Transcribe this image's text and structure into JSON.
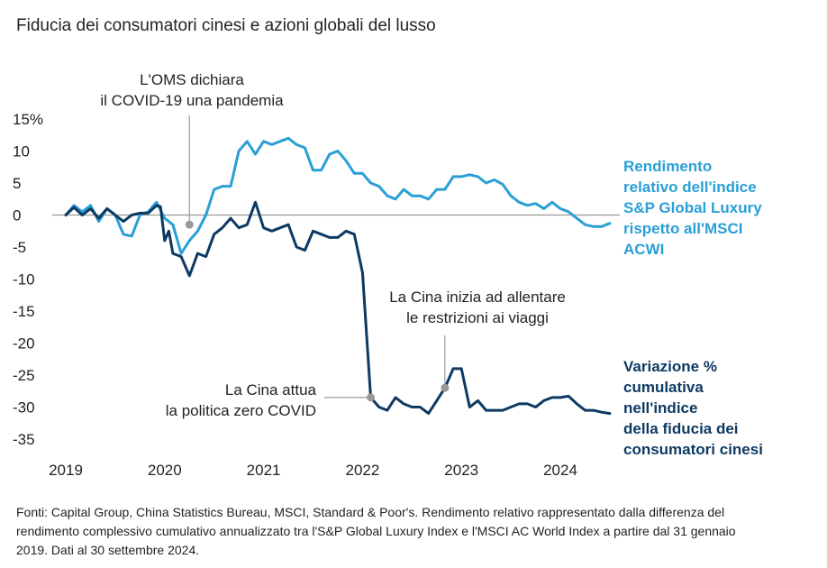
{
  "title": "Fiducia dei consumatori cinesi e azioni globali del lusso",
  "footnote": "Fonti: Capital Group, China Statistics Bureau, MSCI, Standard & Poor's. Rendimento relativo rappresentato dalla differenza del rendimento complessivo cumulativo annualizzato tra l'S&P Global Luxury Index e l'MSCI AC World Index a partire dal 31 gennaio 2019. Dati al 30 settembre 2024.",
  "colors": {
    "luxury": "#2a9fd6",
    "confidence": "#0d3a63",
    "zero_line": "#9a9a9a",
    "marker": "#999999"
  },
  "chart_data": {
    "type": "line",
    "title": "Fiducia dei consumatori cinesi e azioni globali del lusso",
    "xlabel": "",
    "ylabel": "",
    "ylim": [
      -35,
      15
    ],
    "yticks": [
      {
        "value": 15,
        "label": "15%"
      },
      {
        "value": 10,
        "label": "10"
      },
      {
        "value": 5,
        "label": "5"
      },
      {
        "value": 0,
        "label": "0"
      },
      {
        "value": -5,
        "label": "-5"
      },
      {
        "value": -10,
        "label": "-10"
      },
      {
        "value": -15,
        "label": "-15"
      },
      {
        "value": -20,
        "label": "-20"
      },
      {
        "value": -25,
        "label": "-25"
      },
      {
        "value": -30,
        "label": "-30"
      },
      {
        "value": -35,
        "label": "-35"
      }
    ],
    "xticks": [
      {
        "value": 2019.0,
        "label": "2019"
      },
      {
        "value": 2020.0,
        "label": "2020"
      },
      {
        "value": 2021.0,
        "label": "2021"
      },
      {
        "value": 2022.0,
        "label": "2022"
      },
      {
        "value": 2023.0,
        "label": "2023"
      },
      {
        "value": 2024.0,
        "label": "2024"
      }
    ],
    "grid": false,
    "zero_line": true,
    "series": [
      {
        "name": "Rendimento relativo dell'indice S&P Global Luxury rispetto all'MSCI ACWI",
        "color": "#2a9fd6",
        "points": [
          [
            2019.0,
            0
          ],
          [
            2019.083,
            1.5
          ],
          [
            2019.167,
            0.5
          ],
          [
            2019.25,
            1.5
          ],
          [
            2019.333,
            -1
          ],
          [
            2019.417,
            1
          ],
          [
            2019.5,
            0
          ],
          [
            2019.583,
            -3
          ],
          [
            2019.667,
            -3.3
          ],
          [
            2019.75,
            0
          ],
          [
            2019.833,
            0.5
          ],
          [
            2019.917,
            2
          ],
          [
            2020.0,
            -0.5
          ],
          [
            2020.083,
            -1.5
          ],
          [
            2020.167,
            -6
          ],
          [
            2020.25,
            -4
          ],
          [
            2020.333,
            -2.5
          ],
          [
            2020.417,
            0
          ],
          [
            2020.5,
            4
          ],
          [
            2020.583,
            4.5
          ],
          [
            2020.667,
            4.5
          ],
          [
            2020.75,
            10
          ],
          [
            2020.833,
            11.5
          ],
          [
            2020.917,
            9.5
          ],
          [
            2021.0,
            11.5
          ],
          [
            2021.083,
            11
          ],
          [
            2021.167,
            11.5
          ],
          [
            2021.25,
            12
          ],
          [
            2021.333,
            11
          ],
          [
            2021.417,
            10.5
          ],
          [
            2021.5,
            7
          ],
          [
            2021.583,
            7
          ],
          [
            2021.667,
            9.5
          ],
          [
            2021.75,
            10
          ],
          [
            2021.833,
            8.5
          ],
          [
            2021.917,
            6.5
          ],
          [
            2022.0,
            6.5
          ],
          [
            2022.083,
            5
          ],
          [
            2022.167,
            4.5
          ],
          [
            2022.25,
            3
          ],
          [
            2022.333,
            2.5
          ],
          [
            2022.417,
            4
          ],
          [
            2022.5,
            3
          ],
          [
            2022.583,
            3
          ],
          [
            2022.667,
            2.5
          ],
          [
            2022.75,
            4
          ],
          [
            2022.833,
            4
          ],
          [
            2022.917,
            6
          ],
          [
            2023.0,
            6
          ],
          [
            2023.083,
            6.3
          ],
          [
            2023.167,
            6
          ],
          [
            2023.25,
            5
          ],
          [
            2023.333,
            5.5
          ],
          [
            2023.417,
            4.8
          ],
          [
            2023.5,
            3
          ],
          [
            2023.583,
            2
          ],
          [
            2023.667,
            1.5
          ],
          [
            2023.75,
            1.8
          ],
          [
            2023.833,
            1
          ],
          [
            2023.917,
            2
          ],
          [
            2024.0,
            1
          ],
          [
            2024.083,
            0.5
          ],
          [
            2024.167,
            -0.5
          ],
          [
            2024.25,
            -1.5
          ],
          [
            2024.333,
            -1.8
          ],
          [
            2024.417,
            -1.8
          ],
          [
            2024.5,
            -1.3
          ]
        ]
      },
      {
        "name": "Variazione % cumulativa nell'indice della fiducia dei consumatori cinesi",
        "color": "#0d3a63",
        "points": [
          [
            2019.0,
            0
          ],
          [
            2019.083,
            1.2
          ],
          [
            2019.167,
            0
          ],
          [
            2019.25,
            1
          ],
          [
            2019.333,
            -0.5
          ],
          [
            2019.417,
            1
          ],
          [
            2019.5,
            0
          ],
          [
            2019.583,
            -1
          ],
          [
            2019.667,
            0
          ],
          [
            2019.75,
            0.3
          ],
          [
            2019.833,
            0.3
          ],
          [
            2019.917,
            1.5
          ],
          [
            2019.958,
            1.3
          ],
          [
            2020.0,
            -4
          ],
          [
            2020.042,
            -2.5
          ],
          [
            2020.083,
            -6
          ],
          [
            2020.167,
            -6.5
          ],
          [
            2020.25,
            -9.5
          ],
          [
            2020.333,
            -6
          ],
          [
            2020.417,
            -6.5
          ],
          [
            2020.5,
            -3
          ],
          [
            2020.583,
            -2
          ],
          [
            2020.667,
            -0.5
          ],
          [
            2020.75,
            -2
          ],
          [
            2020.833,
            -1.5
          ],
          [
            2020.917,
            2
          ],
          [
            2021.0,
            -2
          ],
          [
            2021.083,
            -2.5
          ],
          [
            2021.167,
            -2
          ],
          [
            2021.25,
            -1.5
          ],
          [
            2021.333,
            -5
          ],
          [
            2021.417,
            -5.5
          ],
          [
            2021.5,
            -2.5
          ],
          [
            2021.583,
            -3
          ],
          [
            2021.667,
            -3.5
          ],
          [
            2021.75,
            -3.5
          ],
          [
            2021.833,
            -2.5
          ],
          [
            2021.917,
            -3
          ],
          [
            2022.0,
            -9
          ],
          [
            2022.083,
            -28.5
          ],
          [
            2022.167,
            -30
          ],
          [
            2022.25,
            -30.5
          ],
          [
            2022.333,
            -28.5
          ],
          [
            2022.417,
            -29.5
          ],
          [
            2022.5,
            -30
          ],
          [
            2022.583,
            -30
          ],
          [
            2022.667,
            -31
          ],
          [
            2022.75,
            -29
          ],
          [
            2022.833,
            -27
          ],
          [
            2022.917,
            -24
          ],
          [
            2023.0,
            -24
          ],
          [
            2023.083,
            -30
          ],
          [
            2023.167,
            -29
          ],
          [
            2023.25,
            -30.5
          ],
          [
            2023.333,
            -30.5
          ],
          [
            2023.417,
            -30.5
          ],
          [
            2023.5,
            -30
          ],
          [
            2023.583,
            -29.5
          ],
          [
            2023.667,
            -29.5
          ],
          [
            2023.75,
            -30
          ],
          [
            2023.833,
            -29
          ],
          [
            2023.917,
            -28.5
          ],
          [
            2024.0,
            -28.5
          ],
          [
            2024.083,
            -28.3
          ],
          [
            2024.167,
            -29.5
          ],
          [
            2024.25,
            -30.5
          ],
          [
            2024.333,
            -30.5
          ],
          [
            2024.417,
            -30.8
          ],
          [
            2024.5,
            -31
          ]
        ]
      }
    ],
    "annotations": [
      {
        "text_lines": [
          "L'OMS dichiara",
          "il COVID-19 una pandemia"
        ],
        "x": 2020.25,
        "y": -1.5
      },
      {
        "text_lines": [
          "La Cina attua",
          "la politica zero COVID"
        ],
        "x": 2022.083,
        "y": -28.5
      },
      {
        "text_lines": [
          "La Cina inizia ad allentare",
          "le restrizioni ai viaggi"
        ],
        "x": 2022.833,
        "y": -27
      }
    ],
    "series_labels": [
      [
        "Rendimento",
        "relativo dell'indice",
        "S&P Global Luxury",
        "rispetto all'MSCI",
        "ACWI"
      ],
      [
        "Variazione %",
        "cumulativa",
        "nell'indice",
        "della fiducia dei",
        "consumatori cinesi"
      ]
    ]
  }
}
